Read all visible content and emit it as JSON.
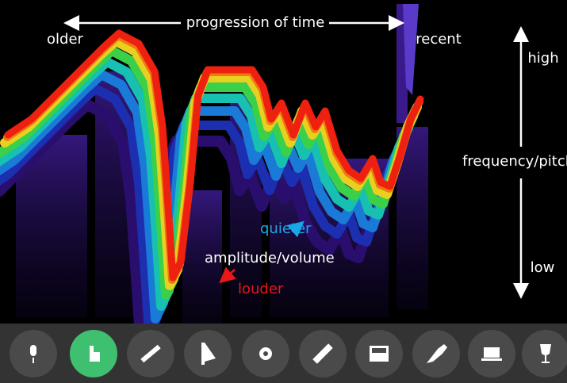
{
  "header": {
    "time_label": "progression of time",
    "older": "older",
    "recent": "recent"
  },
  "frequency_axis": {
    "high": "high",
    "label": "frequency/pitch",
    "low": "low"
  },
  "amplitude": {
    "quieter": "quieter",
    "label": "amplitude/volume",
    "louder": "louder"
  }
}
